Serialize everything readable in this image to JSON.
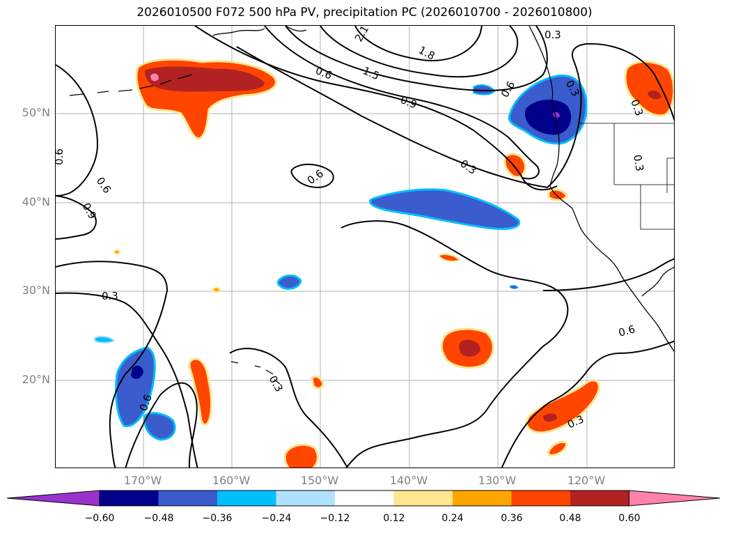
{
  "title": "2026010500 F072 500 hPa PV, precipitation PC (2026010700 - 2026010800)",
  "map": {
    "lat_labels": [
      "50°N",
      "40°N",
      "30°N",
      "20°N"
    ],
    "lon_labels": [
      "170°W",
      "160°W",
      "150°W",
      "140°W",
      "130°W",
      "120°W"
    ],
    "contour_labels": [
      "2.1",
      "1.8",
      "1.5",
      "0.9",
      "0.6",
      "0.3",
      "0.6",
      "0.6",
      "0.6",
      "0.9",
      "0.6",
      "0.3",
      "0.3",
      "0.3",
      "0.6",
      "0.3",
      "0.6",
      "0.3",
      "0.3",
      "0.3"
    ]
  },
  "colorbar": {
    "ticks": [
      "−0.60",
      "−0.48",
      "−0.36",
      "−0.24",
      "−0.12",
      "0.12",
      "0.24",
      "0.36",
      "0.48",
      "0.60"
    ],
    "colors": [
      "#9932cc",
      "#00008b",
      "#3a5ccc",
      "#00bfff",
      "#b0e2ff",
      "#ffffff",
      "#ffe68f",
      "#ffa500",
      "#ff4500",
      "#b22222",
      "#ff82ab"
    ]
  },
  "colors": {
    "contour": "#000000",
    "grid": "#b0b0b0",
    "axis_label": "#808080"
  }
}
